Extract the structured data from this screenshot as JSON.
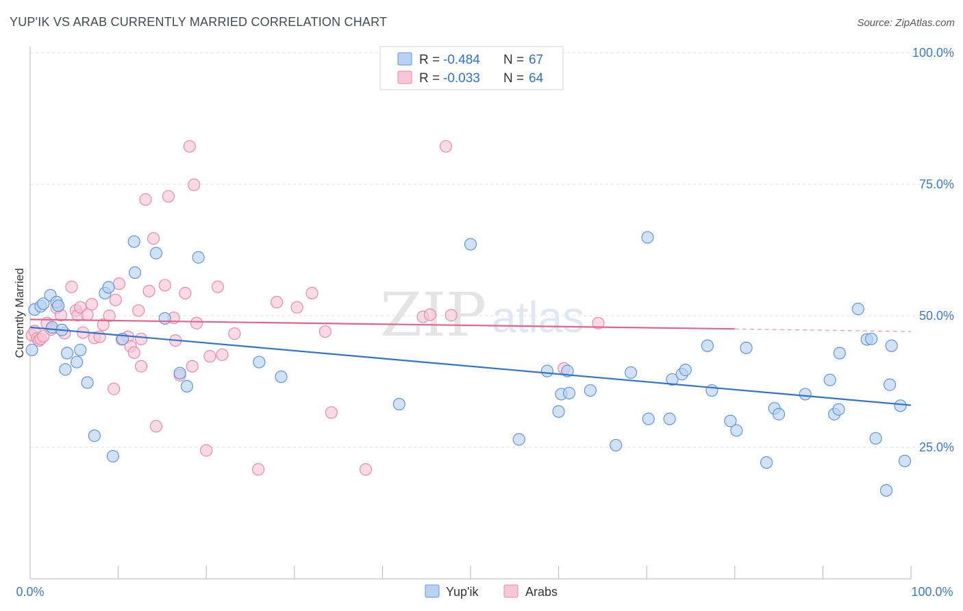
{
  "title": "YUP'IK VS ARAB CURRENTLY MARRIED CORRELATION CHART",
  "source": "Source: ZipAtlas.com",
  "watermark": {
    "zip": "ZIP",
    "atlas": "atlas"
  },
  "legend": {
    "rows": [
      {
        "r_label": "R = ",
        "r_value": "-0.484",
        "n_label": "N = ",
        "n_value": "67"
      },
      {
        "r_label": "R = ",
        "r_value": "-0.033",
        "n_label": "N = ",
        "n_value": "64"
      }
    ]
  },
  "colors": {
    "yupik_fill": "#b9d2f2",
    "yupik_stroke": "#5e96db",
    "yupik_line": "#2f72d0",
    "arab_fill": "#f8c6d6",
    "arab_stroke": "#e98aa9",
    "arab_line": "#e5618e",
    "tick_text": "#3c78c8",
    "grid": "#dddddd"
  },
  "chart_data": {
    "type": "scatter",
    "xlabel": "",
    "ylabel": "Currently Married",
    "xlim": [
      0,
      100
    ],
    "ylim": [
      0,
      100
    ],
    "x_tick_labels": [
      "0.0%",
      "100.0%"
    ],
    "y_ticks": [
      25,
      50,
      75,
      100
    ],
    "y_tick_labels": [
      "25.0%",
      "50.0%",
      "75.0%",
      "100.0%"
    ],
    "grid": true,
    "legend_position": "top-center",
    "series": [
      {
        "name": "Yup'ik",
        "trend": {
          "x0": 0,
          "y0": 47.8,
          "x1": 100,
          "y1": 33.0
        },
        "points": [
          [
            0.2,
            43.5
          ],
          [
            0.5,
            51.2
          ],
          [
            1.2,
            51.8
          ],
          [
            1.5,
            52.3
          ],
          [
            2.3,
            53.9
          ],
          [
            2.5,
            47.8
          ],
          [
            3.0,
            52.6
          ],
          [
            3.2,
            51.9
          ],
          [
            3.6,
            47.3
          ],
          [
            4.0,
            39.8
          ],
          [
            4.2,
            42.9
          ],
          [
            5.3,
            41.2
          ],
          [
            5.7,
            43.5
          ],
          [
            6.5,
            37.3
          ],
          [
            7.3,
            27.2
          ],
          [
            8.5,
            54.3
          ],
          [
            8.9,
            55.4
          ],
          [
            9.4,
            23.3
          ],
          [
            10.5,
            45.6
          ],
          [
            11.8,
            64.1
          ],
          [
            11.9,
            58.2
          ],
          [
            14.3,
            61.9
          ],
          [
            15.3,
            49.5
          ],
          [
            17.0,
            39.1
          ],
          [
            17.8,
            36.6
          ],
          [
            19.1,
            61.1
          ],
          [
            26.0,
            41.2
          ],
          [
            28.5,
            38.4
          ],
          [
            41.9,
            33.2
          ],
          [
            50.0,
            63.6
          ],
          [
            55.5,
            26.5
          ],
          [
            58.7,
            39.5
          ],
          [
            60.0,
            31.8
          ],
          [
            60.3,
            35.1
          ],
          [
            61.0,
            39.5
          ],
          [
            61.2,
            35.3
          ],
          [
            63.6,
            35.8
          ],
          [
            66.5,
            25.4
          ],
          [
            68.2,
            39.2
          ],
          [
            70.2,
            30.4
          ],
          [
            70.1,
            64.9
          ],
          [
            72.6,
            30.4
          ],
          [
            72.9,
            37.9
          ],
          [
            74.0,
            38.9
          ],
          [
            74.4,
            39.7
          ],
          [
            76.9,
            44.3
          ],
          [
            77.4,
            35.8
          ],
          [
            79.5,
            30.0
          ],
          [
            80.2,
            28.2
          ],
          [
            81.3,
            43.9
          ],
          [
            83.6,
            22.1
          ],
          [
            84.5,
            32.4
          ],
          [
            85.0,
            31.3
          ],
          [
            88.0,
            35.1
          ],
          [
            90.8,
            37.8
          ],
          [
            91.3,
            31.3
          ],
          [
            91.8,
            32.2
          ],
          [
            91.9,
            42.9
          ],
          [
            94.0,
            51.3
          ],
          [
            95.0,
            45.5
          ],
          [
            95.5,
            45.6
          ],
          [
            96.0,
            26.7
          ],
          [
            97.2,
            16.8
          ],
          [
            97.6,
            36.9
          ],
          [
            97.8,
            44.3
          ],
          [
            98.8,
            32.9
          ],
          [
            99.3,
            22.4
          ]
        ]
      },
      {
        "name": "Arabs",
        "trend": {
          "x0": 0,
          "y0": 49.3,
          "x1": 80,
          "y1": 47.5,
          "dash_x1": 100,
          "dash_y1": 47.0
        },
        "points": [
          [
            0.2,
            46.3
          ],
          [
            0.5,
            47.1
          ],
          [
            0.8,
            45.7
          ],
          [
            1.0,
            45.3
          ],
          [
            1.2,
            45.6
          ],
          [
            1.5,
            46.1
          ],
          [
            1.9,
            48.6
          ],
          [
            2.4,
            47.4
          ],
          [
            3.0,
            51.5
          ],
          [
            3.5,
            50.1
          ],
          [
            3.9,
            46.7
          ],
          [
            4.7,
            55.5
          ],
          [
            5.2,
            51.0
          ],
          [
            5.4,
            50.1
          ],
          [
            5.7,
            51.6
          ],
          [
            6.0,
            46.8
          ],
          [
            6.5,
            50.2
          ],
          [
            7.0,
            52.2
          ],
          [
            7.3,
            45.8
          ],
          [
            7.9,
            46.0
          ],
          [
            8.3,
            48.3
          ],
          [
            9.0,
            50.0
          ],
          [
            9.5,
            36.1
          ],
          [
            9.7,
            53.0
          ],
          [
            10.1,
            56.1
          ],
          [
            10.4,
            45.5
          ],
          [
            11.1,
            46.0
          ],
          [
            11.4,
            44.2
          ],
          [
            11.8,
            43.0
          ],
          [
            12.3,
            51.0
          ],
          [
            12.6,
            40.4
          ],
          [
            13.1,
            72.1
          ],
          [
            13.5,
            54.7
          ],
          [
            14.0,
            64.7
          ],
          [
            14.3,
            29.0
          ],
          [
            15.3,
            55.8
          ],
          [
            15.7,
            72.7
          ],
          [
            16.3,
            49.6
          ],
          [
            16.5,
            45.3
          ],
          [
            17.0,
            38.7
          ],
          [
            17.6,
            54.3
          ],
          [
            18.1,
            82.2
          ],
          [
            18.4,
            40.4
          ],
          [
            18.6,
            74.9
          ],
          [
            18.9,
            48.6
          ],
          [
            20.0,
            24.4
          ],
          [
            20.4,
            42.3
          ],
          [
            21.3,
            55.5
          ],
          [
            21.8,
            42.6
          ],
          [
            23.2,
            46.6
          ],
          [
            25.9,
            20.8
          ],
          [
            28.0,
            52.6
          ],
          [
            30.3,
            51.6
          ],
          [
            32.0,
            54.3
          ],
          [
            33.5,
            47.0
          ],
          [
            34.2,
            31.6
          ],
          [
            38.1,
            20.8
          ],
          [
            44.6,
            49.8
          ],
          [
            45.4,
            50.2
          ],
          [
            47.2,
            82.2
          ],
          [
            47.8,
            50.1
          ],
          [
            60.6,
            40.0
          ],
          [
            64.5,
            48.6
          ],
          [
            12.6,
            45.6
          ]
        ]
      }
    ]
  }
}
